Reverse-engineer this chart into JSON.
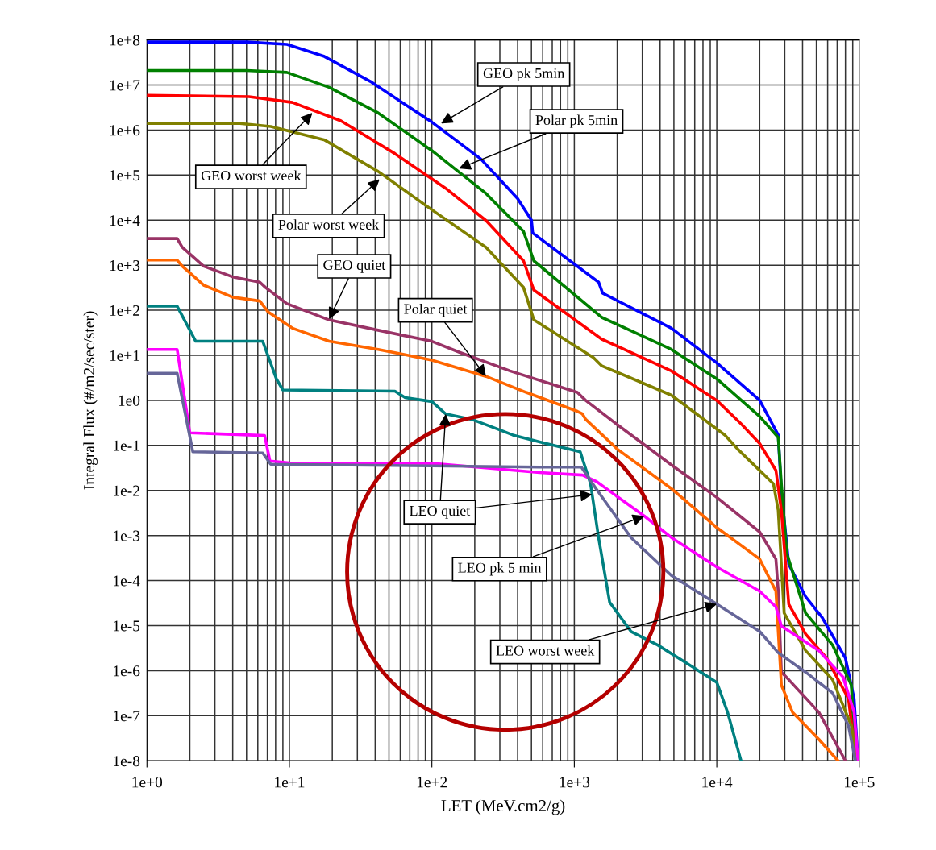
{
  "chart_data": {
    "type": "line",
    "xlabel": "LET (MeV.cm2/g)",
    "ylabel": "Integral Flux (#/m2/sec/ster)",
    "log": "xy",
    "grid": true,
    "legend": false,
    "marker": "none",
    "line_style": "solid",
    "xlim": [
      1,
      100000
    ],
    "ylim": [
      1e-08,
      100000000
    ],
    "xticks": [
      {
        "value": 1,
        "label": "1e+0"
      },
      {
        "value": 10,
        "label": "1e+1"
      },
      {
        "value": 100,
        "label": "1e+2"
      },
      {
        "value": 1000,
        "label": "1e+3"
      },
      {
        "value": 10000,
        "label": "1e+4"
      },
      {
        "value": 100000,
        "label": "1e+5"
      }
    ],
    "yticks": [
      {
        "value": 1e-08,
        "label": "1e-8"
      },
      {
        "value": 1e-07,
        "label": "1e-7"
      },
      {
        "value": 1e-06,
        "label": "1e-6"
      },
      {
        "value": 1e-05,
        "label": "1e-5"
      },
      {
        "value": 0.0001,
        "label": "1e-4"
      },
      {
        "value": 0.001,
        "label": "1e-3"
      },
      {
        "value": 0.01,
        "label": "1e-2"
      },
      {
        "value": 0.1,
        "label": "1e-1"
      },
      {
        "value": 1,
        "label": "1e0"
      },
      {
        "value": 10,
        "label": "1e+1"
      },
      {
        "value": 100,
        "label": "1e+2"
      },
      {
        "value": 1000,
        "label": "1e+3"
      },
      {
        "value": 10000,
        "label": "1e+4"
      },
      {
        "value": 100000,
        "label": "1e+5"
      },
      {
        "value": 1000000,
        "label": "1e+6"
      },
      {
        "value": 10000000,
        "label": "1e+7"
      },
      {
        "value": 100000000,
        "label": "1e+8"
      }
    ],
    "annotations": [
      {
        "text": "GEO pk 5min",
        "x": 116,
        "y": 1400000
      },
      {
        "text": "Polar pk 5min",
        "x": 155,
        "y": 140000
      },
      {
        "text": "GEO worst week",
        "x": 14.5,
        "y": 2400000
      },
      {
        "text": "Polar worst week",
        "x": 43,
        "y": 81000
      },
      {
        "text": "GEO quiet",
        "x": 19,
        "y": 63
      },
      {
        "text": "Polar quiet",
        "x": 240,
        "y": 3.4
      },
      {
        "text": "LEO quiet",
        "x": 125,
        "y": 0.5
      },
      {
        "text": "LEO pk 5 min",
        "x": 3100,
        "y": 0.0027
      },
      {
        "text": "LEO worst week",
        "x": 10000,
        "y": 3e-05
      }
    ],
    "series": [
      {
        "color": "#0000ff",
        "x": [
          1,
          5,
          9.6,
          17.6,
          37,
          100,
          220,
          400,
          500,
          510,
          1480,
          1580,
          4800,
          10000,
          20000,
          27000,
          28400,
          32000,
          42000,
          55000,
          80000,
          92000,
          98000
        ],
        "values": [
          90000000.0,
          90000000.0,
          80000000.0,
          43000000.0,
          12000000.0,
          1500000.0,
          230000.0,
          30000.0,
          10000.0,
          5200.0,
          420,
          240,
          40,
          6.8,
          1,
          0.17,
          0.0093,
          0.00023,
          4.4e-05,
          1.5e-05,
          1.9e-06,
          2.4e-07,
          1e-08
        ]
      },
      {
        "color": "#008000",
        "x": [
          1,
          5,
          9.6,
          19,
          42,
          100,
          240,
          440,
          520,
          1550,
          4800,
          10000,
          20000,
          27000,
          28400,
          31000,
          42000,
          65000,
          88000,
          94000
        ],
        "values": [
          21000000.0,
          21000000.0,
          19000000.0,
          8900000.0,
          2400000.0,
          350000.0,
          39000.0,
          5600.0,
          1250,
          70,
          13.5,
          3,
          0.44,
          0.15,
          0.014,
          0.0004,
          1.9e-05,
          3.7e-06,
          4.8e-07,
          1e-08
        ]
      },
      {
        "color": "#ff0000",
        "x": [
          1,
          5.2,
          10.5,
          23,
          55,
          125,
          240,
          440,
          520,
          1550,
          4800,
          10000,
          15000,
          20000,
          26000,
          28400,
          32000,
          42000,
          59000,
          84000,
          95000
        ],
        "values": [
          5900000.0,
          5500000.0,
          4100000.0,
          1600000.0,
          300000.0,
          51000.0,
          9800.0,
          1250,
          280,
          23,
          4.5,
          1,
          0.29,
          0.11,
          0.028,
          0.0036,
          3e-05,
          6.5e-06,
          1.9e-06,
          2.4e-07,
          1e-08
        ]
      },
      {
        "color": "#808000",
        "x": [
          1,
          4.5,
          7.4,
          17.7,
          42,
          100,
          240,
          440,
          520,
          1360,
          1550,
          4800,
          11400,
          14000,
          25000,
          27000,
          29700,
          42000,
          65000,
          88000,
          97000
        ],
        "values": [
          1400000.0,
          1400000.0,
          1200000.0,
          600000.0,
          120000.0,
          17000.0,
          2500.0,
          320,
          61,
          8.9,
          5.9,
          1.3,
          0.17,
          0.083,
          0.014,
          0.0036,
          1.9e-05,
          2.8e-06,
          6.3e-07,
          6e-08,
          1e-08
        ]
      },
      {
        "color": "#993366",
        "x": [
          1,
          1.63,
          1.77,
          2.5,
          4,
          6.2,
          6.8,
          9.6,
          19,
          42,
          100,
          155,
          354,
          1050,
          1200,
          2000,
          4800,
          10000,
          20000,
          26000,
          27000,
          28400,
          32000,
          52000,
          80000
        ],
        "values": [
          3900.0,
          3900.0,
          2500.0,
          950,
          550,
          420,
          320,
          140,
          61,
          36,
          20.5,
          11.8,
          4.5,
          1.5,
          1,
          0.29,
          0.037,
          0.007,
          0.0012,
          0.0003,
          5.8e-05,
          9.3e-07,
          6.3e-07,
          1.2e-07,
          1e-08
        ]
      },
      {
        "color": "#ff6600",
        "x": [
          1,
          1.63,
          1.77,
          2.5,
          4,
          6.2,
          7.1,
          10.5,
          19,
          42,
          65,
          100,
          240,
          460,
          1050,
          1140,
          1200,
          2000,
          4800,
          10000,
          20000,
          26000,
          28400,
          34000,
          52000,
          71000
        ],
        "values": [
          1300.0,
          1300.0,
          950,
          360,
          195,
          160,
          91,
          40,
          20.5,
          13.5,
          10.3,
          7.8,
          3.4,
          1.5,
          0.57,
          0.5,
          0.38,
          0.083,
          0.011,
          0.0015,
          0.0003,
          5.8e-05,
          4.8e-07,
          1.2e-07,
          3e-08,
          1e-08
        ]
      },
      {
        "color": "#008080",
        "x": [
          1,
          1.63,
          2.2,
          6.5,
          8.1,
          9,
          55,
          65,
          100,
          125,
          190,
          300,
          370,
          570,
          1100,
          1300,
          1480,
          1770,
          2500,
          3850,
          6800,
          10000,
          11900,
          14800
        ],
        "values": [
          123,
          123,
          20.5,
          20.5,
          3,
          1.7,
          1.6,
          1.15,
          0.94,
          0.5,
          0.38,
          0.22,
          0.17,
          0.12,
          0.072,
          0.014,
          0.0009,
          3.3e-05,
          7.4e-06,
          3.7e-06,
          1.2e-06,
          5.5e-07,
          1.2e-07,
          1e-08
        ]
      },
      {
        "color": "#ff00ff",
        "x": [
          1,
          1.63,
          2,
          6.7,
          7.3,
          10,
          100,
          570,
          1140,
          1420,
          3100,
          4800,
          10000,
          20000,
          26000,
          28400,
          52000,
          77000,
          92000,
          98000
        ],
        "values": [
          13.5,
          13.5,
          0.19,
          0.165,
          0.045,
          0.041,
          0.04,
          0.025,
          0.022,
          0.016,
          0.0027,
          0.0009,
          0.0002,
          5.8e-05,
          2.6e-05,
          9.8e-06,
          2.8e-06,
          7.2e-07,
          1.2e-07,
          1e-08
        ]
      },
      {
        "color": "#666699",
        "x": [
          1,
          1.63,
          2.1,
          6.5,
          7.4,
          100,
          570,
          1120,
          1420,
          2500,
          4800,
          10000,
          20000,
          27000,
          42000,
          65000,
          84000,
          94000
        ],
        "values": [
          4,
          4,
          0.072,
          0.068,
          0.038,
          0.035,
          0.033,
          0.033,
          0.011,
          0.0009,
          0.00013,
          3e-05,
          7.4e-06,
          2.5e-06,
          9.3e-07,
          3.2e-07,
          6e-08,
          1e-08
        ]
      }
    ]
  }
}
